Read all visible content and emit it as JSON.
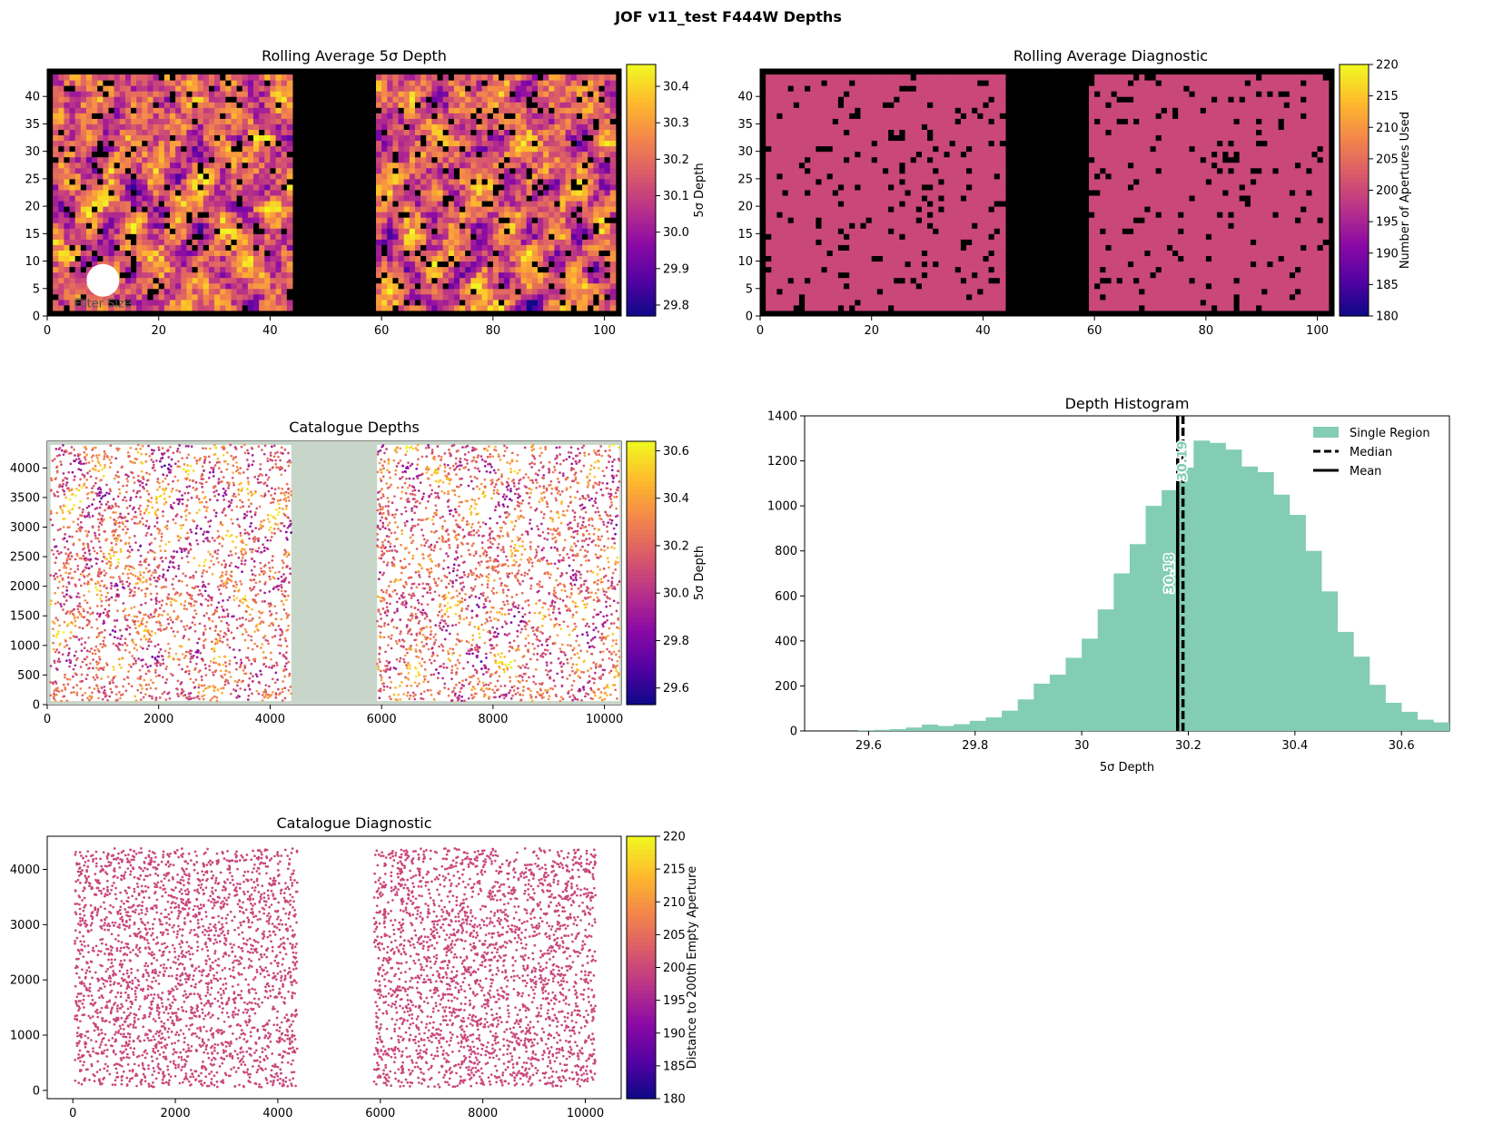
{
  "figure": {
    "title": "JOF v11_test F444W Depths"
  },
  "chart_data": [
    {
      "id": "rolling_depth",
      "type": "heatmap",
      "title": "Rolling Average 5σ Depth",
      "xlim": [
        0,
        103
      ],
      "ylim": [
        0,
        45
      ],
      "xticks": [
        0,
        20,
        40,
        60,
        80,
        100
      ],
      "yticks": [
        0,
        5,
        10,
        15,
        20,
        25,
        30,
        35,
        40
      ],
      "colorbar": {
        "label": "5σ Depth",
        "range": [
          29.77,
          30.46
        ],
        "ticks": [
          29.8,
          29.9,
          30.0,
          30.1,
          30.2,
          30.3,
          30.4
        ],
        "decimals": 1
      },
      "cmap": "plasma",
      "regions_x": [
        [
          1,
          44
        ],
        [
          59,
          102
        ]
      ],
      "masked_fraction": 0.08,
      "annotation": "Filter Size"
    },
    {
      "id": "rolling_diag",
      "type": "heatmap",
      "title": "Rolling Average Diagnostic",
      "xlim": [
        0,
        103
      ],
      "ylim": [
        0,
        45
      ],
      "xticks": [
        0,
        20,
        40,
        60,
        80,
        100
      ],
      "yticks": [
        0,
        5,
        10,
        15,
        20,
        25,
        30,
        35,
        40
      ],
      "colorbar": {
        "label": "Number of Apertures Used",
        "range": [
          180,
          220
        ],
        "ticks": [
          180,
          185,
          190,
          195,
          200,
          205,
          210,
          215,
          220
        ],
        "decimals": 0
      },
      "cmap": "plasma",
      "value": 200,
      "regions_x": [
        [
          1,
          44
        ],
        [
          59,
          102
        ]
      ],
      "masked_fraction": 0.08
    },
    {
      "id": "catalogue_depths",
      "type": "scatter",
      "title": "Catalogue Depths",
      "xlim": [
        0,
        10300
      ],
      "ylim": [
        0,
        4450
      ],
      "xticks": [
        0,
        2000,
        4000,
        6000,
        8000,
        10000
      ],
      "yticks": [
        0,
        500,
        1000,
        1500,
        2000,
        2500,
        3000,
        3500,
        4000
      ],
      "colorbar": {
        "label": "5σ Depth",
        "range": [
          29.53,
          30.64
        ],
        "ticks": [
          29.6,
          29.8,
          30.0,
          30.2,
          30.4,
          30.6
        ],
        "decimals": 1
      },
      "cmap": "plasma",
      "background": "#c8d6ca",
      "regions_x": [
        [
          60,
          4380
        ],
        [
          5920,
          10270
        ]
      ],
      "regions_y": [
        60,
        4390
      ]
    },
    {
      "id": "depth_hist",
      "type": "histogram",
      "title": "Depth Histogram",
      "xlabel": "5σ Depth",
      "xlim": [
        29.48,
        30.69
      ],
      "ylim": [
        0,
        1400
      ],
      "xticks": [
        29.6,
        29.8,
        30.0,
        30.2,
        30.4,
        30.6
      ],
      "yticks": [
        0,
        200,
        400,
        600,
        800,
        1000,
        1200,
        1400
      ],
      "bin_start": 29.58,
      "bin_width": 0.03,
      "counts": [
        3,
        5,
        8,
        15,
        28,
        22,
        30,
        45,
        60,
        90,
        140,
        210,
        250,
        325,
        410,
        540,
        700,
        830,
        1000,
        1070,
        1170,
        1290,
        1280,
        1250,
        1175,
        1150,
        1050,
        960,
        800,
        620,
        440,
        330,
        205,
        125,
        85,
        50,
        38,
        25,
        12,
        5
      ],
      "fill_color": "#82cdb3",
      "mean": 30.18,
      "median": 30.19,
      "mean_label": "30.18",
      "median_label": "30.19",
      "legend": {
        "position": "top-right",
        "entries": [
          "Single Region",
          "Median",
          "Mean"
        ]
      }
    },
    {
      "id": "catalogue_diag",
      "type": "scatter",
      "title": "Catalogue Diagnostic",
      "xlim": [
        -500,
        10700
      ],
      "ylim": [
        -150,
        4600
      ],
      "xticks": [
        0,
        2000,
        4000,
        6000,
        8000,
        10000
      ],
      "yticks": [
        0,
        1000,
        2000,
        3000,
        4000
      ],
      "colorbar": {
        "label": "Distance to 200th Empty Aperture",
        "range": [
          180,
          220
        ],
        "ticks": [
          180,
          185,
          190,
          195,
          200,
          205,
          210,
          215,
          220
        ],
        "decimals": 0
      },
      "cmap": "plasma",
      "value": 200,
      "regions_x": [
        [
          40,
          4380
        ],
        [
          5880,
          10200
        ]
      ],
      "regions_y": [
        60,
        4380
      ]
    }
  ]
}
